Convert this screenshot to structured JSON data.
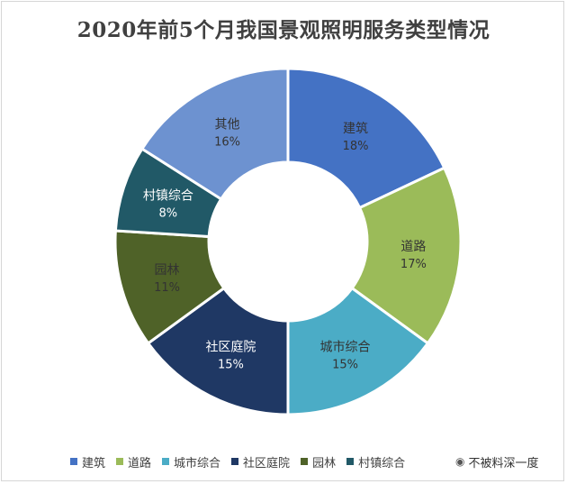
{
  "chart_data": {
    "type": "pie",
    "title": "2020年前5个月我国景观照明服务类型情况",
    "categories": [
      "建筑",
      "道路",
      "城市综合",
      "社区庭院",
      "园林",
      "村镇综合",
      "其他"
    ],
    "values": [
      18,
      17,
      15,
      15,
      11,
      8,
      16
    ],
    "labels": [
      "18%",
      "17%",
      "15%",
      "15%",
      "11%",
      "8%",
      "16%"
    ],
    "colors": [
      "#4472c4",
      "#9bbb59",
      "#4bacc6",
      "#1f3864",
      "#4f6228",
      "#215967",
      "#6d92d0"
    ],
    "donut": true,
    "legend_position": "bottom"
  },
  "watermark": {
    "text": "不被料深一度",
    "icon": "wechat-icon"
  }
}
